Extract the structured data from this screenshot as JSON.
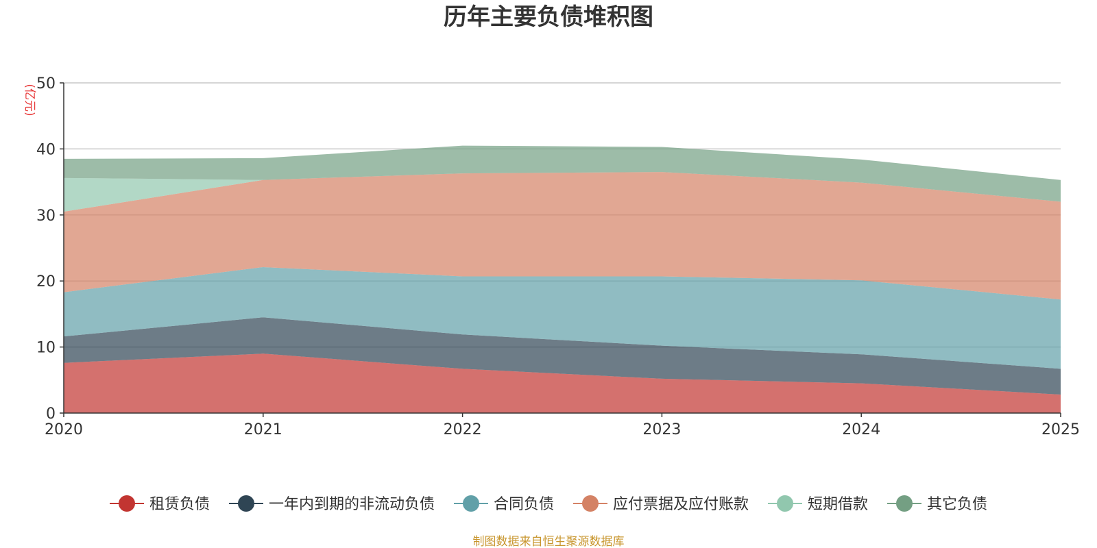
{
  "chart_data": {
    "type": "area",
    "title": "历年主要负债堆积图",
    "ylabel": "(亿元)",
    "xlabel": "",
    "x": [
      "2020",
      "2021",
      "2022",
      "2023",
      "2024",
      "2025"
    ],
    "ylim": [
      0,
      50
    ],
    "yticks": [
      "0",
      "10",
      "20",
      "30",
      "40",
      "50"
    ],
    "grid": true,
    "stacked": true,
    "legend_position": "bottom",
    "series": [
      {
        "name": "租赁负债",
        "color": "#c23531",
        "values": [
          7.6,
          9.0,
          6.7,
          5.2,
          4.5,
          2.8
        ]
      },
      {
        "name": "一年内到期的非流动负债",
        "color": "#2f4554",
        "values": [
          4.0,
          5.5,
          5.2,
          5.0,
          4.4,
          3.9
        ]
      },
      {
        "name": "合同负债",
        "color": "#61a0a8",
        "values": [
          6.7,
          7.6,
          8.8,
          10.5,
          11.2,
          10.5
        ]
      },
      {
        "name": "应付票据及应付账款",
        "color": "#d48265",
        "values": [
          12.2,
          13.2,
          15.6,
          15.8,
          14.8,
          14.8
        ]
      },
      {
        "name": "短期借款",
        "color": "#91c7ae",
        "values": [
          5.1,
          0.0,
          0.0,
          0.0,
          0.0,
          0.0
        ]
      },
      {
        "name": "其它负债",
        "color": "#749f83",
        "values": [
          2.9,
          3.3,
          4.2,
          3.8,
          3.5,
          3.3
        ]
      }
    ],
    "source_note": "制图数据来自恒生聚源数据库"
  }
}
